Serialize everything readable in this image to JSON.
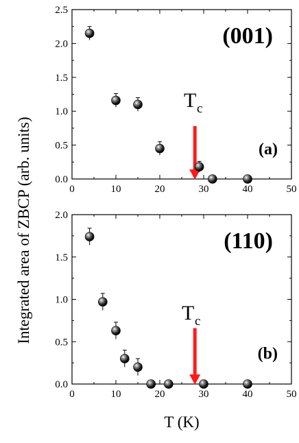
{
  "figure": {
    "ylabel": "Integrated area of ZBCP (arb. units)",
    "xlabel": "T (K)"
  },
  "chart_data": [
    {
      "type": "scatter",
      "title": "(001)",
      "panel_label": "(a)",
      "xlabel": "T (K)",
      "ylabel": "Integrated area of ZBCP (arb. units)",
      "xlim": [
        0,
        50
      ],
      "ylim": [
        0,
        2.5
      ],
      "xticks": [
        0,
        10,
        20,
        30,
        40,
        50
      ],
      "yticks": [
        0.0,
        0.5,
        1.0,
        1.5,
        2.0,
        2.5
      ],
      "ytick_labels": [
        "0.0",
        "0.5",
        "1.0",
        "1.5",
        "2.0",
        "2.5"
      ],
      "series": [
        {
          "x": [
            4,
            10,
            15,
            20,
            29,
            32,
            40
          ],
          "y": [
            2.15,
            1.16,
            1.1,
            0.45,
            0.18,
            0.0,
            0.0
          ],
          "yerr": [
            0.1,
            0.1,
            0.1,
            0.1,
            0.08,
            0.03,
            0.03
          ]
        }
      ],
      "annotation": {
        "text": "T",
        "subscript": "c",
        "x": 28,
        "arrow_from_y": 0.78,
        "arrow_to_y": 0.0,
        "color": "#ff1a1a"
      }
    },
    {
      "type": "scatter",
      "title": "(110)",
      "panel_label": "(b)",
      "xlabel": "T (K)",
      "ylabel": "Integrated area of ZBCP (arb. units)",
      "xlim": [
        0,
        50
      ],
      "ylim": [
        0,
        2.0
      ],
      "xticks": [
        0,
        10,
        20,
        30,
        40,
        50
      ],
      "yticks": [
        0.0,
        0.5,
        1.0,
        1.5,
        2.0
      ],
      "ytick_labels": [
        "0.0",
        "0.5",
        "1.0",
        "1.5",
        "2.0"
      ],
      "series": [
        {
          "x": [
            4,
            7,
            10,
            12,
            15,
            18,
            22,
            30,
            40
          ],
          "y": [
            1.74,
            0.97,
            0.63,
            0.3,
            0.2,
            0.0,
            0.0,
            0.0,
            0.0
          ],
          "yerr": [
            0.1,
            0.1,
            0.1,
            0.1,
            0.1,
            0.02,
            0.02,
            0.02,
            0.02
          ]
        }
      ],
      "annotation": {
        "text": "T",
        "subscript": "c",
        "x": 28,
        "arrow_from_y": 0.66,
        "arrow_to_y": 0.0,
        "color": "#ff1a1a"
      }
    }
  ]
}
